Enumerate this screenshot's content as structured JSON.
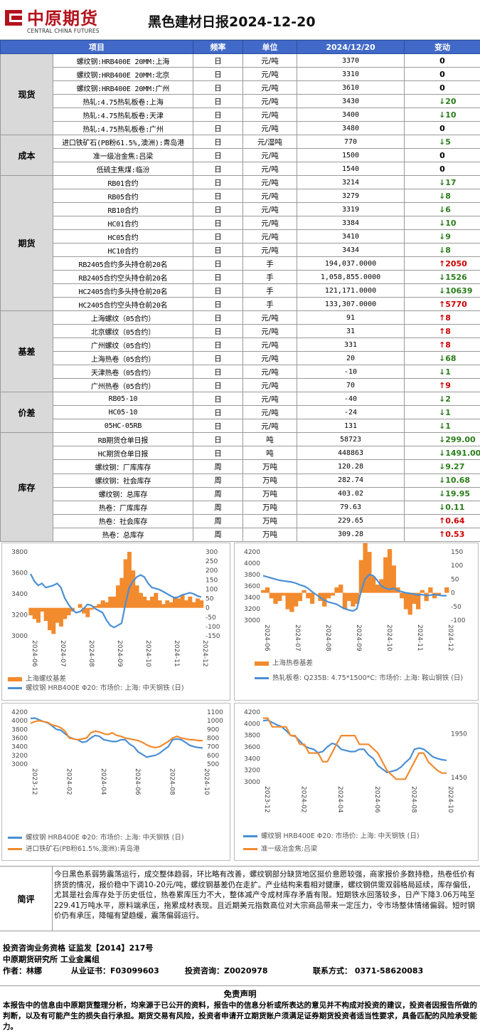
{
  "header": {
    "logo_cn": "中原期货",
    "logo_en": "CENTRAL CHINA FUTURES",
    "title": "黑色建材日报2024-12-20"
  },
  "table": {
    "columns": [
      "项目",
      "频率",
      "单位",
      "2024/12/20",
      "变动"
    ],
    "sections": [
      {
        "name": "现货",
        "rows": [
          {
            "item": "螺纹钢:HRB400E 20MM:上海",
            "freq": "日",
            "unit": "元/吨",
            "value": "3370",
            "dir": "",
            "change": "0"
          },
          {
            "item": "螺纹钢:HRB400E 20MM:北京",
            "freq": "日",
            "unit": "元/吨",
            "value": "3310",
            "dir": "",
            "change": "0"
          },
          {
            "item": "螺纹钢:HRB400E 20MM:广州",
            "freq": "日",
            "unit": "元/吨",
            "value": "3610",
            "dir": "",
            "change": "0"
          },
          {
            "item": "热轧:4.75热轧板卷:上海",
            "freq": "日",
            "unit": "元/吨",
            "value": "3430",
            "dir": "down",
            "change": "20"
          },
          {
            "item": "热轧:4.75热轧板卷:天津",
            "freq": "日",
            "unit": "元/吨",
            "value": "3400",
            "dir": "down",
            "change": "10"
          },
          {
            "item": "热轧:4.75热轧板卷:广州",
            "freq": "日",
            "unit": "元/吨",
            "value": "3480",
            "dir": "",
            "change": "0"
          }
        ]
      },
      {
        "name": "成本",
        "rows": [
          {
            "item": "进口铁矿石(PB粉61.5%,澳洲):青岛港",
            "freq": "日",
            "unit": "元/湿吨",
            "value": "770",
            "dir": "down",
            "change": "5"
          },
          {
            "item": "准一级冶金焦:吕梁",
            "freq": "日",
            "unit": "元/吨",
            "value": "1500",
            "dir": "",
            "change": "0"
          },
          {
            "item": "低硫主焦煤:临汾",
            "freq": "日",
            "unit": "元/吨",
            "value": "1540",
            "dir": "",
            "change": "0"
          }
        ]
      },
      {
        "name": "期货",
        "rows": [
          {
            "item": "RB01合约",
            "freq": "日",
            "unit": "元/吨",
            "value": "3214",
            "dir": "down",
            "change": "17"
          },
          {
            "item": "RB05合约",
            "freq": "日",
            "unit": "元/吨",
            "value": "3279",
            "dir": "down",
            "change": "8"
          },
          {
            "item": "RB10合约",
            "freq": "日",
            "unit": "元/吨",
            "value": "3319",
            "dir": "down",
            "change": "6"
          },
          {
            "item": "HC01合约",
            "freq": "日",
            "unit": "元/吨",
            "value": "3384",
            "dir": "down",
            "change": "10"
          },
          {
            "item": "HC05合约",
            "freq": "日",
            "unit": "元/吨",
            "value": "3410",
            "dir": "down",
            "change": "9"
          },
          {
            "item": "HC10合约",
            "freq": "日",
            "unit": "元/吨",
            "value": "3434",
            "dir": "down",
            "change": "8"
          },
          {
            "item": "RB2405合约多头持仓前20名",
            "freq": "日",
            "unit": "手",
            "value": "194,037.0000",
            "dir": "up",
            "change": "2050"
          },
          {
            "item": "RB2405合约空头持仓前20名",
            "freq": "日",
            "unit": "手",
            "value": "1,058,855.0000",
            "dir": "down",
            "change": "1526"
          },
          {
            "item": "HC2405合约多头持仓前20名",
            "freq": "日",
            "unit": "手",
            "value": "121,171.0000",
            "dir": "down",
            "change": "10639"
          },
          {
            "item": "HC2405合约空头持仓前20名",
            "freq": "日",
            "unit": "手",
            "value": "133,307.0000",
            "dir": "up",
            "change": "5770"
          }
        ]
      },
      {
        "name": "基差",
        "rows": [
          {
            "item": "上海螺纹（05合约）",
            "freq": "日",
            "unit": "元/吨",
            "value": "91",
            "dir": "up",
            "change": "8"
          },
          {
            "item": "北京螺纹（05合约）",
            "freq": "日",
            "unit": "元/吨",
            "value": "31",
            "dir": "up",
            "change": "8"
          },
          {
            "item": "广州螺纹（05合约）",
            "freq": "日",
            "unit": "元/吨",
            "value": "331",
            "dir": "up",
            "change": "8"
          },
          {
            "item": "上海热卷（05合约）",
            "freq": "日",
            "unit": "元/吨",
            "value": "20",
            "dir": "down",
            "change": "68"
          },
          {
            "item": "天津热卷（05合约）",
            "freq": "日",
            "unit": "元/吨",
            "value": "-10",
            "dir": "down",
            "change": "1"
          },
          {
            "item": "广州热卷（05合约）",
            "freq": "日",
            "unit": "元/吨",
            "value": "70",
            "dir": "up",
            "change": "9"
          }
        ]
      },
      {
        "name": "价差",
        "rows": [
          {
            "item": "RB05-10",
            "freq": "日",
            "unit": "元/吨",
            "value": "-40",
            "dir": "down",
            "change": "2"
          },
          {
            "item": "HC05-10",
            "freq": "日",
            "unit": "元/吨",
            "value": "-24",
            "dir": "down",
            "change": "1"
          },
          {
            "item": "05HC-05RB",
            "freq": "日",
            "unit": "元/吨",
            "value": "131",
            "dir": "down",
            "change": "1"
          }
        ]
      },
      {
        "name": "库存",
        "rows": [
          {
            "item": "RB期货仓单日报",
            "freq": "日",
            "unit": "吨",
            "value": "58723",
            "dir": "down",
            "change": "299.00"
          },
          {
            "item": "HC期货仓单日报",
            "freq": "日",
            "unit": "吨",
            "value": "448863",
            "dir": "down",
            "change": "1491.00"
          },
          {
            "item": "螺纹钢：厂库库存",
            "freq": "周",
            "unit": "万吨",
            "value": "120.28",
            "dir": "down",
            "change": "9.27"
          },
          {
            "item": "螺纹钢：社会库存",
            "freq": "周",
            "unit": "万吨",
            "value": "282.74",
            "dir": "down",
            "change": "10.68"
          },
          {
            "item": "螺纹钢：总库存",
            "freq": "周",
            "unit": "万吨",
            "value": "403.02",
            "dir": "down",
            "change": "19.95"
          },
          {
            "item": "热卷：厂库库存",
            "freq": "周",
            "unit": "万吨",
            "value": "79.63",
            "dir": "down",
            "change": "0.11"
          },
          {
            "item": "热卷：社会库存",
            "freq": "周",
            "unit": "万吨",
            "value": "229.65",
            "dir": "up",
            "change": "0.64"
          },
          {
            "item": "热卷：总库存",
            "freq": "周",
            "unit": "万吨",
            "value": "309.28",
            "dir": "up",
            "change": "0.53"
          }
        ]
      }
    ]
  },
  "chart_data": [
    {
      "type": "area",
      "x_ticks": [
        "2024-06",
        "2024-07",
        "2024-08",
        "2024-09",
        "2024-10",
        "2024-11",
        "2024-12"
      ],
      "y_left": [
        3000,
        3200,
        3400,
        3600,
        3800
      ],
      "y_right": [
        -150,
        -100,
        -50,
        0,
        50,
        100,
        150,
        200,
        250,
        300
      ],
      "ylim_left": [
        3000,
        3800
      ],
      "ylim_right": [
        -150,
        300
      ],
      "series": [
        {
          "name": "上海螺纹基差",
          "axis": "right",
          "type": "area",
          "color": "#f28a2e",
          "values": [
            -40,
            -60,
            -80,
            -20,
            -70,
            -120,
            -140,
            -80,
            -100,
            -60,
            -40,
            -20,
            0,
            20,
            -30,
            -50,
            -10,
            10,
            20,
            40,
            30,
            60,
            60,
            120,
            160,
            260,
            300,
            200,
            120,
            80,
            60,
            40,
            60,
            80,
            40,
            20,
            40,
            30,
            60,
            50,
            70,
            40,
            60,
            30,
            50,
            40
          ]
        },
        {
          "name": "螺纹钢   HRB400E   Φ20:  市场价:  上海:  中天钢铁  (日)",
          "axis": "left",
          "type": "line",
          "color": "#4a8fd4",
          "values": [
            3590,
            3520,
            3480,
            3500,
            3460,
            3470,
            3480,
            3500,
            3460,
            3360,
            3300,
            3250,
            3220,
            3230,
            3260,
            3300,
            3290,
            3260,
            3240,
            3220,
            3150,
            3100,
            3080,
            3100,
            3120,
            3300,
            3460,
            3520,
            3560,
            3580,
            3560,
            3500,
            3460,
            3450,
            3440,
            3420,
            3400,
            3380,
            3360,
            3370,
            3390,
            3400,
            3410,
            3400,
            3380,
            3370
          ]
        }
      ]
    },
    {
      "type": "area",
      "x_ticks": [
        "2024-06",
        "2024-07",
        "2024-08",
        "2024-09",
        "2024-10",
        "2024-11",
        "2024-12"
      ],
      "y_left": [
        3000,
        3200,
        3400,
        3600,
        3800,
        4000,
        4200
      ],
      "y_right": [
        -100,
        -50,
        0,
        50,
        100,
        150
      ],
      "ylim_left": [
        3000,
        4200
      ],
      "ylim_right": [
        -100,
        150
      ],
      "series": [
        {
          "name": "上海热卷基差",
          "axis": "right",
          "type": "area",
          "color": "#f28a2e",
          "values": [
            10,
            20,
            -20,
            -40,
            -30,
            -10,
            -60,
            -70,
            -50,
            -30,
            10,
            -20,
            -40,
            0,
            -30,
            -50,
            -20,
            -10,
            20,
            30,
            -60,
            -30,
            -50,
            -40,
            120,
            200,
            150,
            60,
            30,
            50,
            130,
            160,
            100,
            20,
            -20,
            -60,
            -80,
            -40,
            -60,
            10,
            -30,
            20,
            -20,
            -10,
            0,
            20
          ]
        },
        {
          "name": "热轧板卷:   Q235B:   4.75*1500*C:   市场价:   上海:   鞍山钢铁  (日)",
          "axis": "left",
          "type": "line",
          "color": "#4a8fd4",
          "values": [
            3780,
            3760,
            3740,
            3720,
            3700,
            3690,
            3680,
            3670,
            3650,
            3620,
            3600,
            3560,
            3500,
            3450,
            3400,
            3350,
            3320,
            3300,
            3280,
            3240,
            3200,
            3180,
            3160,
            3200,
            3500,
            3720,
            3800,
            3780,
            3700,
            3600,
            3560,
            3540,
            3560,
            3520,
            3500,
            3480,
            3470,
            3460,
            3440,
            3450,
            3430,
            3440,
            3450,
            3440,
            3430,
            3430
          ]
        }
      ]
    },
    {
      "type": "line",
      "x_ticks": [
        "2023-12",
        "2024-02",
        "2024-04",
        "2024-06",
        "2024-08",
        "2024-10"
      ],
      "y_left": [
        3000,
        3200,
        3400,
        3600,
        3800,
        4000,
        4200
      ],
      "y_right": [
        500,
        600,
        700,
        800,
        900,
        1000,
        1100
      ],
      "ylim_left": [
        3000,
        4200
      ],
      "ylim_right": [
        500,
        1100
      ],
      "series": [
        {
          "name": "螺纹钢   HRB400E   Φ20:  市场价:  上海:  中天钢铁  (日)",
          "axis": "left",
          "color": "#4a8fd4",
          "values": [
            4050,
            4060,
            4020,
            3980,
            3950,
            3880,
            3800,
            3780,
            3700,
            3620,
            3580,
            3560,
            3500,
            3520,
            3600,
            3660,
            3640,
            3560,
            3540,
            3520,
            3520,
            3560,
            3560,
            3460,
            3400,
            3280,
            3220,
            3160,
            3180,
            3200,
            3250,
            3330,
            3400,
            3560,
            3580,
            3560,
            3500,
            3430,
            3400,
            3380,
            3370
          ]
        },
        {
          "name": "进口铁矿石(PB粉61.5%,澳洲):青岛港",
          "axis": "right",
          "color": "#f28a2e",
          "values": [
            970,
            990,
            1000,
            990,
            980,
            950,
            940,
            920,
            880,
            800,
            790,
            780,
            790,
            800,
            860,
            880,
            870,
            850,
            840,
            860,
            830,
            820,
            800,
            790,
            780,
            770,
            750,
            720,
            700,
            690,
            700,
            730,
            760,
            800,
            820,
            800,
            790,
            780,
            780,
            770,
            770
          ]
        }
      ]
    },
    {
      "type": "line",
      "x_ticks": [
        "2023-12",
        "2024-02",
        "2024-04",
        "2024-06",
        "2024-08",
        "2024-10"
      ],
      "y_left": [
        3000,
        3200,
        3400,
        3600,
        3800,
        4000,
        4200
      ],
      "y_right": [
        1450,
        1950
      ],
      "ylim_left": [
        3000,
        4200
      ],
      "ylim_right": [
        1400,
        2200
      ],
      "series": [
        {
          "name": "螺纹钢   HRB400E   Φ20:  市场价:  上海:  中天钢铁  (日)",
          "axis": "left",
          "color": "#4a8fd4",
          "values": [
            4050,
            4060,
            4020,
            3980,
            3950,
            3880,
            3800,
            3780,
            3700,
            3620,
            3580,
            3560,
            3500,
            3520,
            3600,
            3660,
            3640,
            3560,
            3540,
            3520,
            3520,
            3560,
            3560,
            3460,
            3400,
            3280,
            3220,
            3160,
            3180,
            3200,
            3250,
            3330,
            3400,
            3560,
            3580,
            3560,
            3500,
            3430,
            3400,
            3380,
            3370
          ]
        },
        {
          "name": "准一级冶金焦:吕梁",
          "axis": "right",
          "color": "#f28a2e",
          "values": [
            2130,
            2130,
            2030,
            2030,
            2030,
            2030,
            1930,
            1930,
            1830,
            1830,
            1730,
            1730,
            1730,
            1630,
            1630,
            1730,
            1830,
            1930,
            1930,
            1930,
            1930,
            1830,
            1830,
            1830,
            1780,
            1730,
            1630,
            1530,
            1480,
            1430,
            1430,
            1430,
            1530,
            1630,
            1730,
            1730,
            1630,
            1580,
            1530,
            1500,
            1500
          ]
        }
      ]
    }
  ],
  "comment": {
    "label": "简评",
    "text": "今日黑色系弱势震荡运行，成交整体趋弱，环比略有改善，螺纹钢部分缺货地区挺价意愿较强，商家报价多数持稳，热卷低价有挤货的情况，报价稳中下调10-20元/吨，螺纹钢基差仍在走扩。产业结构来看相对健康，螺纹钢供需双弱格局延续，库存偏低，尤其是社会库存处于历史低位，热卷累库压力不大，整体减产令成材库存矛盾有限。短期铁水回落较多，日产下降3.06万吨至229.41万吨水平，原料端承压，拖累成材表现。且近期美元指数高位对大宗商品带来一定压力，令市场整体情绪偏弱。短时钢价仍有承压，降幅有望趋缓，震荡偏弱运行。"
  },
  "info": {
    "line1": "投资咨询业务资格    证监发【2014】217号",
    "line2": "中原期货研究所    工业金属组",
    "author_label": "作者：林娜",
    "cert_label": "从业证书：F03099603",
    "consult_label": "投资咨询：Z0020978",
    "contact_label": "联系方式：  0371-58620083"
  },
  "disclaimer": {
    "title": "免责声明",
    "text": "本报告中的信息由中原期货整理分析，均来源于已公开的资料，报告中的信息分析或所表达的意见并不构成对投资的建议，投资者因报告所做的判断，以及有可能产生的损失自行承担。期货交易有风险，投资者申请开立期货账户须满足证券期货投资者适当性要求，具备匹配的风险承受能力。"
  }
}
